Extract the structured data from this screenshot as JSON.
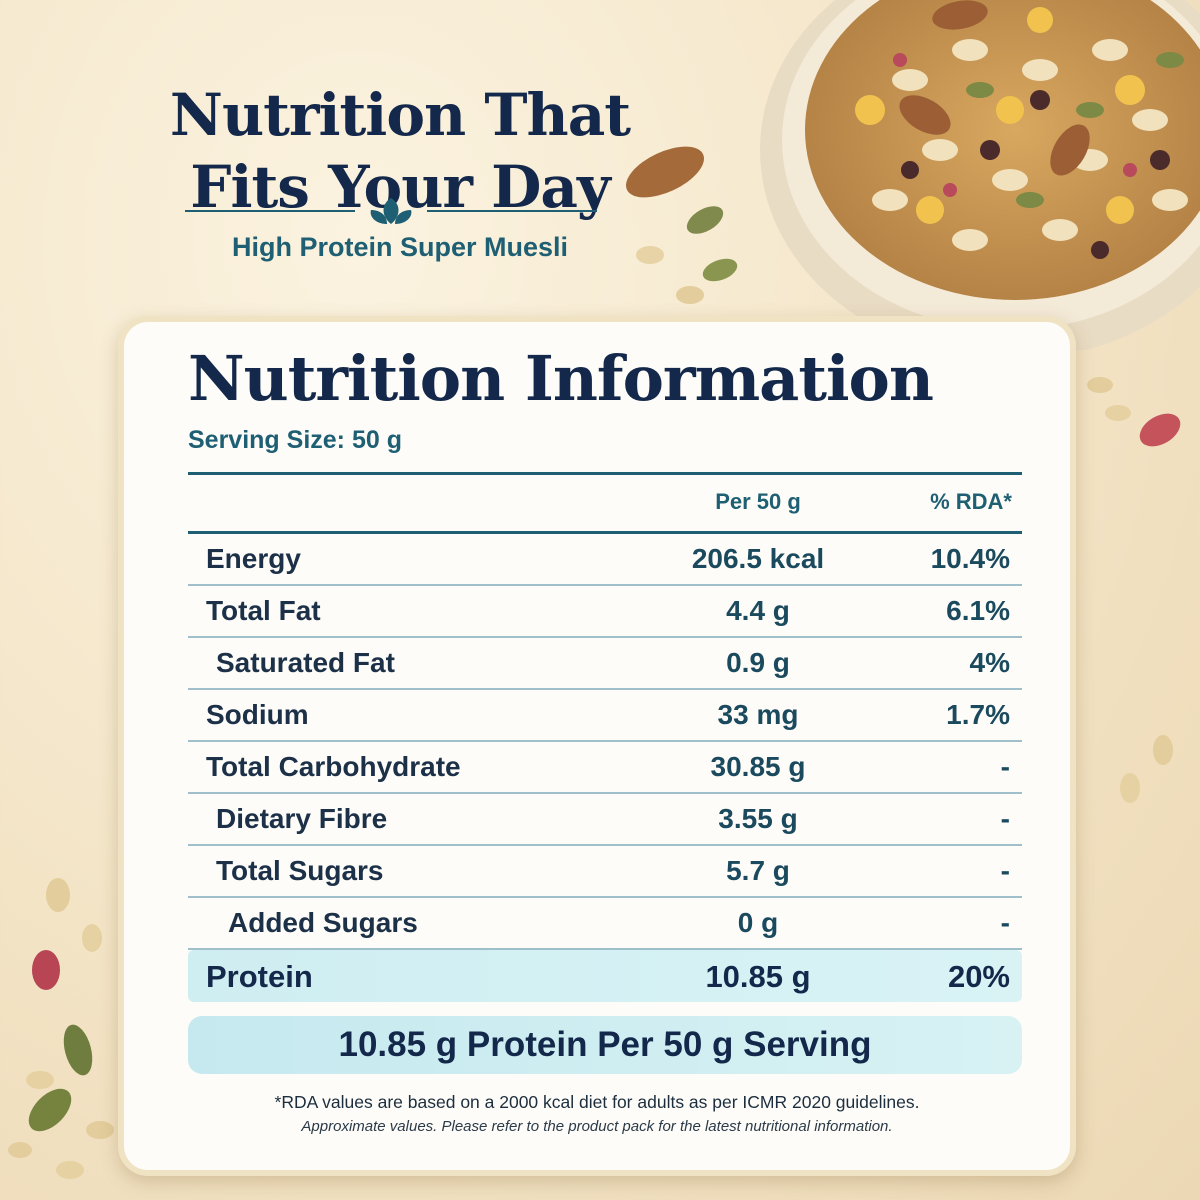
{
  "header": {
    "headline_line1": "Nutrition That",
    "headline_line2": "Fits Your Day",
    "subtitle": "High Protein Super Muesli"
  },
  "card": {
    "title": "Nutrition Information",
    "serving_size": "Serving Size: 50 g",
    "columns": {
      "per": "Per 50 g",
      "rda": "% RDA*"
    },
    "rows": [
      {
        "name": "Energy",
        "per": "206.5 kcal",
        "rda": "10.4%"
      },
      {
        "name": "Total Fat",
        "per": "4.4 g",
        "rda": "6.1%"
      },
      {
        "name": "Saturated Fat",
        "per": "0.9 g",
        "rda": "4%"
      },
      {
        "name": "Sodium",
        "per": "33 mg",
        "rda": "1.7%"
      },
      {
        "name": "Total Carbohydrate",
        "per": "30.85 g",
        "rda": "-"
      },
      {
        "name": "Dietary Fibre",
        "per": "3.55 g",
        "rda": "-"
      },
      {
        "name": "Total Sugars",
        "per": "5.7 g",
        "rda": "-"
      },
      {
        "name": "Added Sugars",
        "per": "0 g",
        "rda": "-"
      },
      {
        "name": "Protein",
        "per": "10.85 g",
        "rda": "20%"
      }
    ],
    "banner": "10.85 g Protein Per 50 g Serving",
    "footnote": "*RDA values are based on a 2000 kcal diet for adults as per ICMR 2020 guidelines.",
    "disclaimer": "Approximate values. Please refer to the product pack for the latest nutritional information."
  },
  "icons": {
    "divider": "leaf-icon",
    "bowl": "muesli-bowl-icon"
  },
  "colors": {
    "navy": "#13284a",
    "teal": "#1f5f73",
    "highlight": "#cfeef2",
    "background": "#f3e4c6"
  }
}
